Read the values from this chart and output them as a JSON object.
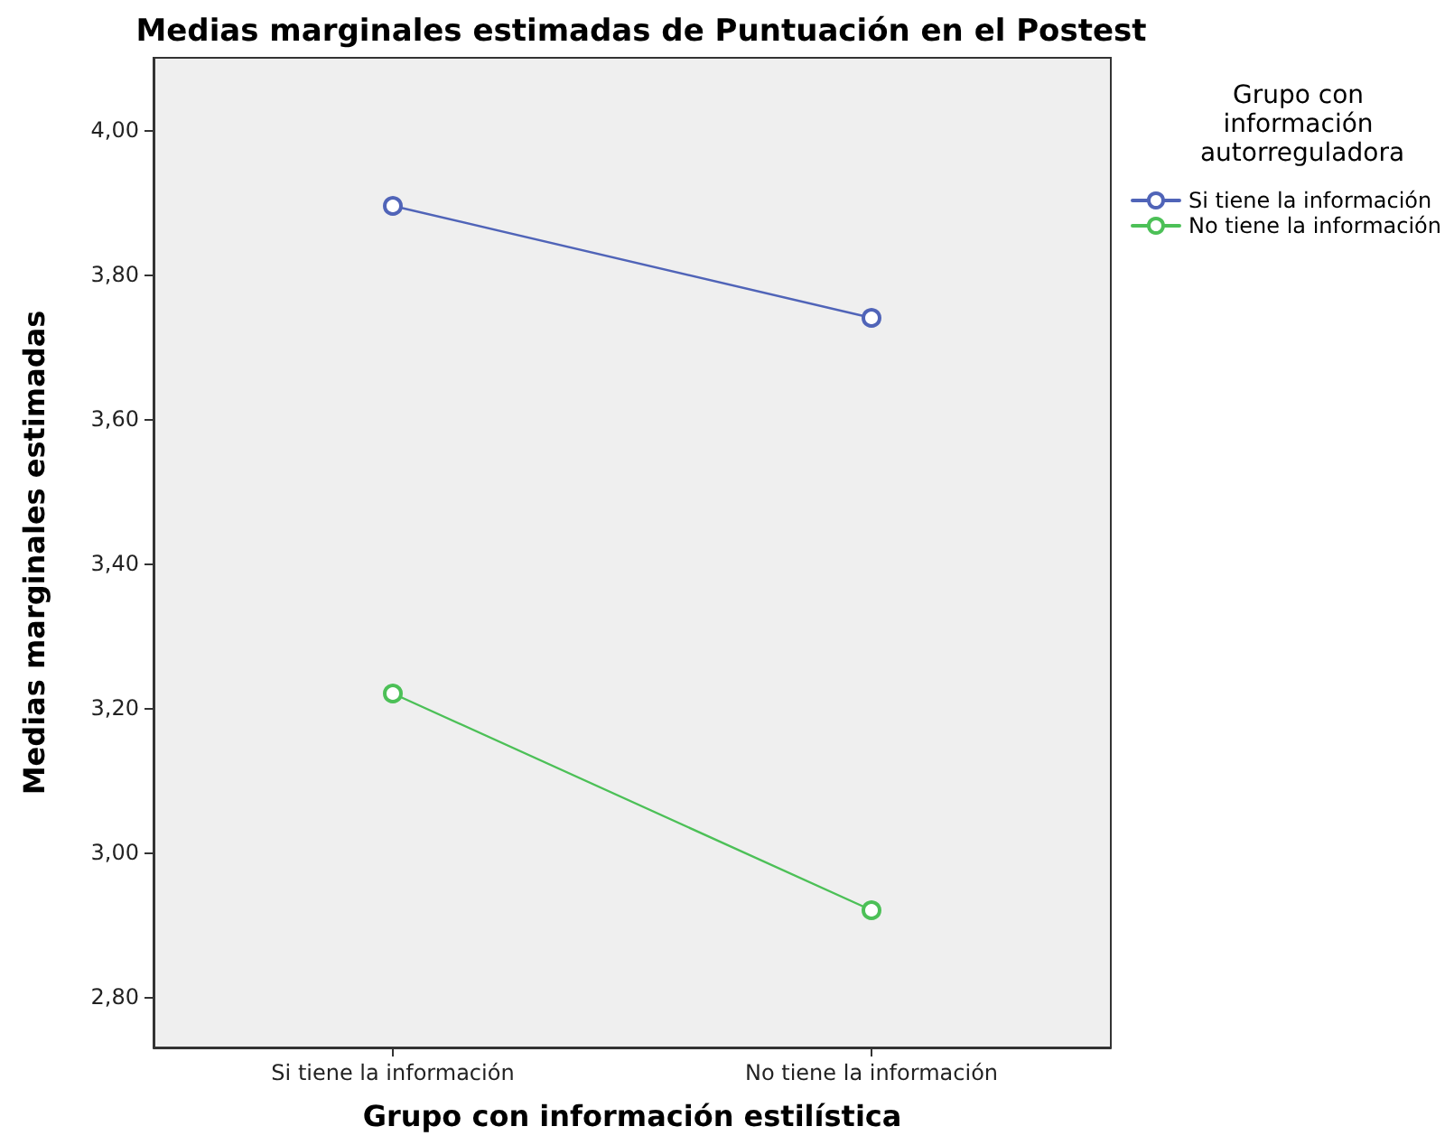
{
  "chart_data": {
    "type": "line",
    "title": "Medias marginales estimadas de Puntuación en el Postest",
    "xlabel": "Grupo con información estilística",
    "ylabel": "Medias marginales estimadas",
    "legend_title": "Grupo con información autorreguladora",
    "categories": [
      "Si tiene la información",
      "No tiene la información"
    ],
    "series": [
      {
        "name": "Si tiene la información",
        "color": "#5064b8",
        "values": [
          3.895,
          3.74
        ]
      },
      {
        "name": "No tiene la información",
        "color": "#4cc057",
        "values": [
          3.22,
          2.92
        ]
      }
    ],
    "ylim": [
      2.73,
      4.1
    ],
    "yticks": [
      {
        "value": 2.8,
        "label": "2,80"
      },
      {
        "value": 3.0,
        "label": "3,00"
      },
      {
        "value": 3.2,
        "label": "3,20"
      },
      {
        "value": 3.4,
        "label": "3,40"
      },
      {
        "value": 3.6,
        "label": "3,60"
      },
      {
        "value": 3.8,
        "label": "3,80"
      },
      {
        "value": 4.0,
        "label": "4,00"
      }
    ],
    "grid": false,
    "legend": "top right",
    "marker": "circle",
    "line_style": "solid"
  }
}
